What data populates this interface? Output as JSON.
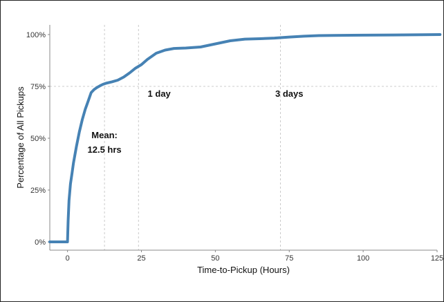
{
  "chart_data": {
    "type": "line",
    "xlabel": "Time-to-Pickup (Hours)",
    "ylabel": "Percentage of All Pickups",
    "xlim": [
      -6,
      125
    ],
    "ylim": [
      0,
      100
    ],
    "x_ticks": [
      0,
      25,
      50,
      75,
      100,
      125
    ],
    "y_ticks": [
      0,
      25,
      50,
      75,
      100
    ],
    "x_tick_labels": [
      "0",
      "25",
      "50",
      "75",
      "100",
      "125"
    ],
    "y_tick_labels": [
      "0%",
      "25%",
      "50%",
      "75%",
      "100%"
    ],
    "grid": "dashed",
    "line_color": "#4682b4",
    "reference_lines": [
      {
        "axis": "x",
        "value": 12.5
      },
      {
        "axis": "x",
        "value": 24
      },
      {
        "axis": "x",
        "value": 72
      },
      {
        "axis": "y",
        "value": 75
      }
    ],
    "annotations": [
      {
        "lines": [
          "Mean:",
          "12.5 hrs"
        ],
        "x": 12.5,
        "y": 50
      },
      {
        "lines": [
          "1 day"
        ],
        "x": 31,
        "y": 70
      },
      {
        "lines": [
          "3 days"
        ],
        "x": 75,
        "y": 70
      }
    ],
    "series": [
      {
        "x": [
          -6,
          0,
          0.2,
          0.5,
          1,
          1.5,
          2,
          3,
          4,
          5,
          6,
          7,
          8,
          9,
          10,
          11,
          12,
          13,
          15,
          17,
          19,
          21,
          23,
          25,
          27,
          30,
          33,
          36,
          40,
          45,
          50,
          55,
          60,
          65,
          70,
          75,
          80,
          85,
          90,
          100,
          110,
          120,
          126
        ],
        "y": [
          0,
          0,
          10,
          20,
          28,
          33,
          38,
          46,
          53,
          59,
          64,
          68,
          72,
          73.5,
          74.5,
          75.3,
          76,
          76.5,
          77.2,
          78,
          79.5,
          81.5,
          83.8,
          85.5,
          88,
          91,
          92.5,
          93.3,
          93.5,
          94,
          95.5,
          97,
          97.8,
          98,
          98.3,
          98.8,
          99.2,
          99.5,
          99.6,
          99.7,
          99.8,
          99.9,
          100
        ]
      }
    ]
  }
}
